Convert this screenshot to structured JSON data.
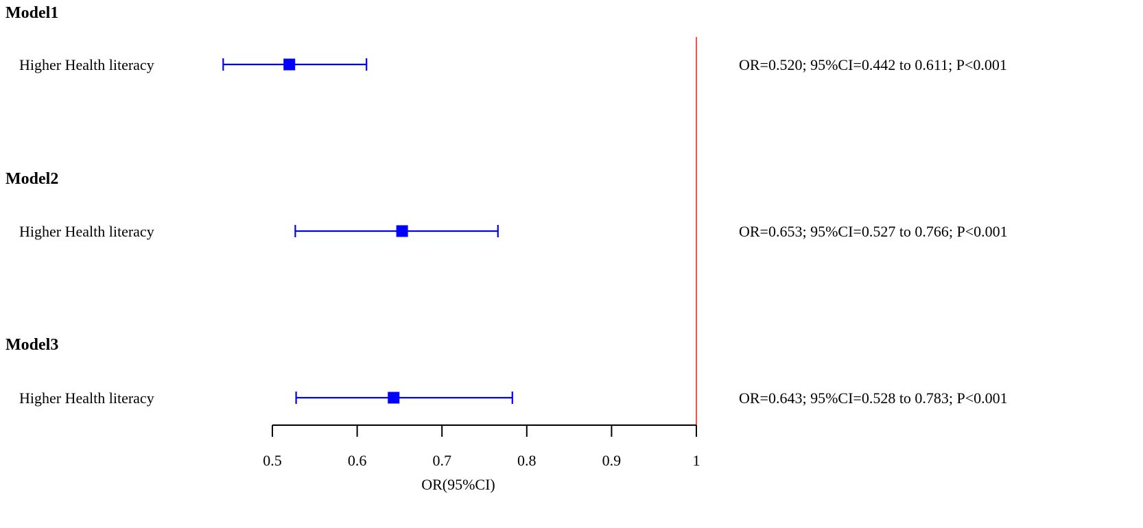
{
  "chart_data": {
    "type": "forest",
    "xlabel": "OR(95%CI)",
    "xlim": [
      0.5,
      1.0
    ],
    "ticks": [
      0.5,
      0.6,
      0.7,
      0.8,
      0.9,
      1.0
    ],
    "tick_labels": [
      "0.5",
      "0.6",
      "0.7",
      "0.8",
      "0.9",
      "1"
    ],
    "reference_line": 1.0,
    "colors": {
      "marker": "#0000ff",
      "reference_line": "#e03020",
      "axis": "#000000"
    },
    "groups": [
      {
        "title": "Model1",
        "label": "Higher Health literacy",
        "or": 0.52,
        "ci_low": 0.442,
        "ci_high": 0.611,
        "stat_text": "OR=0.520; 95%CI=0.442 to 0.611;   P<0.001"
      },
      {
        "title": "Model2",
        "label": "Higher Health literacy",
        "or": 0.653,
        "ci_low": 0.527,
        "ci_high": 0.766,
        "stat_text": "OR=0.653; 95%CI=0.527 to 0.766;  P<0.001"
      },
      {
        "title": "Model3",
        "label": "Higher Health literacy",
        "or": 0.643,
        "ci_low": 0.528,
        "ci_high": 0.783,
        "stat_text": "OR=0.643; 95%CI=0.528 to 0.783;   P<0.001"
      }
    ]
  }
}
